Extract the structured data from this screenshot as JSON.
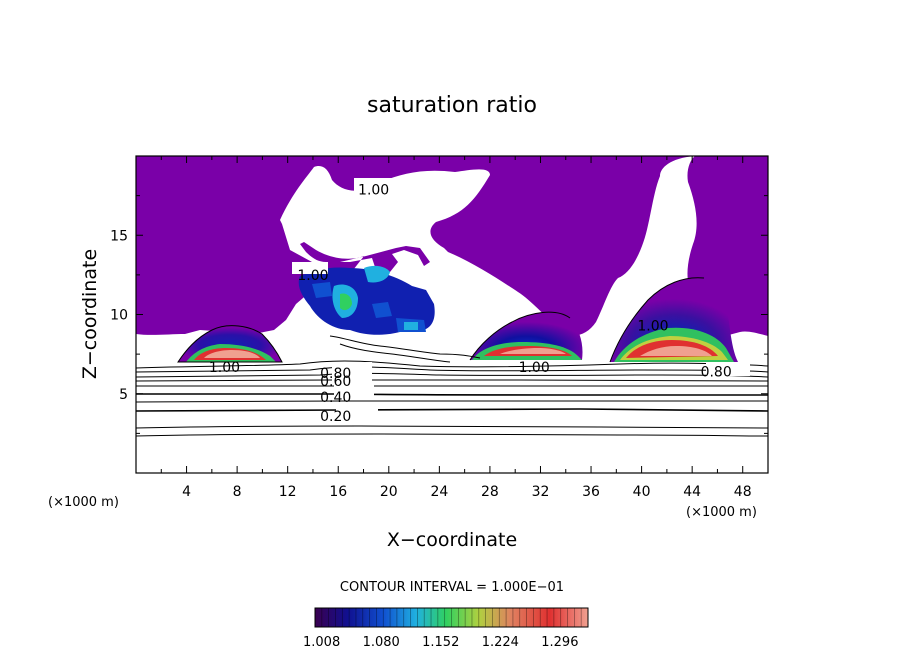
{
  "chart_data": {
    "type": "heatmap",
    "title": "saturation ratio",
    "xlabel": "X−coordinate",
    "ylabel": "Z−coordinate",
    "x_unit": "(×1000 m)",
    "z_unit": "(×1000 m)",
    "xlim": [
      0,
      50
    ],
    "ylim": [
      0,
      20
    ],
    "x_ticks": [
      4,
      8,
      12,
      16,
      20,
      24,
      28,
      32,
      36,
      40,
      44,
      48
    ],
    "y_ticks": [
      5,
      10,
      15
    ],
    "contour_interval_text": "CONTOUR INTERVAL = 1.000E−01",
    "colorbar_ticks": [
      "1.008",
      "1.080",
      "1.152",
      "1.224",
      "1.296"
    ],
    "colorbar_range": [
      1.0,
      1.33
    ],
    "contour_labels": [
      {
        "text": "1.00",
        "x": 18.8,
        "z": 17.9
      },
      {
        "text": "1.00",
        "x": 14.0,
        "z": 12.5
      },
      {
        "text": "1.00",
        "x": 40.9,
        "z": 9.3
      },
      {
        "text": "1.00",
        "x": 7.0,
        "z": 6.7
      },
      {
        "text": "1.00",
        "x": 31.5,
        "z": 6.7
      },
      {
        "text": "0.80",
        "x": 15.8,
        "z": 6.3
      },
      {
        "text": "0.60",
        "x": 15.8,
        "z": 5.8
      },
      {
        "text": "0.40",
        "x": 15.8,
        "z": 4.8
      },
      {
        "text": "0.20",
        "x": 15.8,
        "z": 3.6
      },
      {
        "text": "0.80",
        "x": 45.9,
        "z": 6.4
      }
    ],
    "colors": {
      "saturated_base": "#7a00a8",
      "colorbar_stops": [
        "#3a0050",
        "#101090",
        "#1050d0",
        "#20b0e0",
        "#30d060",
        "#b0d040",
        "#e08060",
        "#e03030",
        "#f0a090"
      ]
    }
  }
}
